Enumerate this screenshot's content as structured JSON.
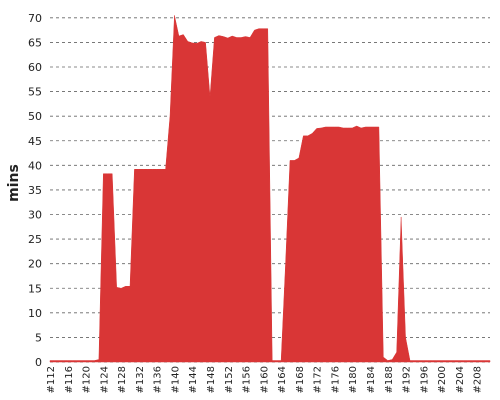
{
  "chart_data": {
    "type": "area",
    "title": "",
    "xlabel": "",
    "ylabel": "mins",
    "ylim": [
      0,
      72
    ],
    "yticks": [
      0,
      5,
      10,
      15,
      20,
      25,
      30,
      35,
      40,
      45,
      50,
      55,
      60,
      65,
      70
    ],
    "xlim": [
      112,
      211
    ],
    "xticks": [
      "#112",
      "#116",
      "#120",
      "#124",
      "#128",
      "#132",
      "#136",
      "#140",
      "#144",
      "#148",
      "#152",
      "#156",
      "#160",
      "#164",
      "#168",
      "#172",
      "#176",
      "#180",
      "#184",
      "#188",
      "#192",
      "#196",
      "#200",
      "#204",
      "#208"
    ],
    "grid": true,
    "color": "#d93636",
    "series": [
      {
        "x": [
          112,
          113,
          114,
          115,
          116,
          117,
          118,
          119,
          120,
          121,
          122,
          123,
          124,
          125,
          126,
          127,
          128,
          129,
          130,
          131,
          132,
          133,
          134,
          135,
          136,
          137,
          138,
          139,
          140,
          141,
          142,
          143,
          144,
          145,
          146,
          147,
          148,
          149,
          150,
          151,
          152,
          153,
          154,
          155,
          156,
          157,
          158,
          159,
          160,
          161,
          162,
          163,
          164,
          165,
          166,
          167,
          168,
          169,
          170,
          171,
          172,
          173,
          174,
          175,
          176,
          177,
          178,
          179,
          180,
          181,
          182,
          183,
          184,
          185,
          186,
          187,
          188,
          189,
          190,
          191,
          192,
          193,
          194,
          195,
          196,
          197,
          198,
          199,
          200,
          201,
          202,
          203,
          204,
          205,
          206,
          207,
          208,
          209,
          210,
          211
        ],
        "values": [
          0.3,
          0.3,
          0.3,
          0.3,
          0.3,
          0.3,
          0.3,
          0.3,
          0.3,
          0.3,
          0.3,
          0.5,
          38.3,
          38.3,
          38.3,
          15.2,
          15.0,
          15.4,
          15.4,
          39.2,
          39.2,
          39.2,
          39.2,
          39.2,
          39.2,
          39.2,
          39.2,
          50.0,
          70.5,
          66.3,
          66.6,
          65.2,
          64.9,
          64.8,
          65.2,
          65.0,
          54.0,
          66.0,
          66.4,
          66.2,
          65.9,
          66.3,
          66.0,
          66.0,
          66.2,
          66.0,
          67.5,
          67.8,
          67.8,
          67.8,
          0.3,
          0.3,
          0.3,
          20.0,
          41.0,
          41.0,
          41.5,
          46.0,
          46.0,
          46.5,
          47.5,
          47.6,
          47.8,
          47.8,
          47.8,
          47.8,
          47.6,
          47.6,
          47.6,
          48.0,
          47.6,
          47.8,
          47.8,
          47.8,
          47.8,
          1.0,
          0.3,
          0.5,
          2.0,
          29.5,
          5.0,
          0.3,
          0.3,
          0.3,
          0.3,
          0.3,
          0.3,
          0.3,
          0.3,
          0.3,
          0.3,
          0.3,
          0.3,
          0.3,
          0.3,
          0.3,
          0.3,
          0.3,
          0.3,
          0.3
        ]
      }
    ]
  }
}
